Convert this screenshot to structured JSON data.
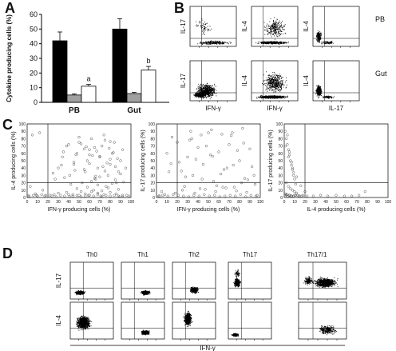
{
  "panel_labels": [
    "A",
    "B",
    "C",
    "D"
  ],
  "chart_data": [
    {
      "panel": "A",
      "type": "bar",
      "ylabel": "Cytokine producing cells (%)",
      "ylim": [
        0,
        60
      ],
      "yticks": [
        0,
        10,
        20,
        30,
        40,
        50,
        60
      ],
      "categories": [
        "PB",
        "Gut"
      ],
      "bar_colors": [
        "#000000",
        "#a0a0a0",
        "#ffffff"
      ],
      "series": [
        {
          "values": [
            42,
            50
          ],
          "errors": [
            6,
            7
          ]
        },
        {
          "values": [
            5,
            6
          ],
          "errors": [
            0.8,
            0.8
          ]
        },
        {
          "values": [
            11,
            22
          ],
          "errors": [
            1.2,
            2.5
          ]
        }
      ],
      "annotations": [
        {
          "group": 0,
          "series": 2,
          "text": "a"
        },
        {
          "group": 1,
          "series": 2,
          "text": "b"
        }
      ]
    },
    {
      "panel": "B",
      "type": "scatter",
      "row_labels": [
        "PB",
        "Gut"
      ],
      "plots": [
        {
          "row": 0,
          "col": 0,
          "ylabel": "IL-17",
          "xlabel": "",
          "pattern": "bottom-band",
          "density": "low"
        },
        {
          "row": 0,
          "col": 1,
          "ylabel": "IL-4",
          "xlabel": "",
          "pattern": "bottom-band-with-tail",
          "density": "medium"
        },
        {
          "row": 0,
          "col": 2,
          "ylabel": "IL-4",
          "xlabel": "",
          "pattern": "left-column",
          "density": "low"
        },
        {
          "row": 1,
          "col": 0,
          "ylabel": "IL-17",
          "xlabel": "IFN-γ",
          "pattern": "dense-block",
          "density": "high"
        },
        {
          "row": 1,
          "col": 1,
          "ylabel": "IL-4",
          "xlabel": "IFN-γ",
          "pattern": "bottom-band-with-tail",
          "density": "high"
        },
        {
          "row": 1,
          "col": 2,
          "ylabel": "IL-4",
          "xlabel": "IL-17",
          "pattern": "left-column",
          "density": "medium"
        }
      ]
    },
    {
      "panel": "C",
      "type": "scatter",
      "plots": [
        {
          "xlabel": "IFN-γ producing cells (%)",
          "ylabel": "IL-4 producing cells (%)",
          "xlim": [
            0,
            100
          ],
          "ylim": [
            0,
            100
          ],
          "xticks": [
            0,
            10,
            20,
            30,
            40,
            50,
            60,
            70,
            80,
            90,
            100
          ],
          "yticks": [
            0,
            10,
            20,
            30,
            40,
            50,
            60,
            70,
            80,
            90,
            100
          ],
          "threshold_x": 20,
          "threshold_y": 20,
          "x": [
            5,
            12,
            3,
            8,
            15,
            22,
            27,
            30,
            34,
            38,
            41,
            45,
            48,
            50,
            53,
            56,
            58,
            60,
            62,
            64,
            66,
            68,
            70,
            72,
            74,
            76,
            78,
            80,
            82,
            84,
            86,
            88,
            90,
            92,
            95,
            35,
            40,
            45,
            55,
            60,
            65,
            70,
            75,
            80,
            85,
            90,
            50,
            55,
            60,
            65,
            70,
            75,
            80,
            85,
            42,
            48,
            52,
            58,
            62,
            68,
            72,
            78,
            82,
            88,
            30,
            38,
            44,
            50,
            56,
            62,
            68,
            74,
            80,
            86,
            92,
            25,
            33,
            47,
            57,
            67,
            77,
            87,
            36,
            46,
            63,
            73,
            83,
            93,
            52,
            66,
            79,
            2,
            6,
            10,
            14,
            18,
            24,
            28,
            32,
            36,
            40,
            44,
            48,
            52,
            56,
            60,
            64,
            68,
            72,
            76,
            80,
            84,
            88,
            92,
            96,
            98,
            1,
            9,
            17,
            26,
            41,
            59,
            71,
            89
          ],
          "y": [
            85,
            88,
            15,
            5,
            10,
            3,
            25,
            40,
            55,
            70,
            30,
            45,
            60,
            75,
            20,
            35,
            50,
            65,
            80,
            10,
            25,
            40,
            55,
            70,
            85,
            15,
            30,
            45,
            60,
            75,
            20,
            35,
            50,
            65,
            40,
            62,
            72,
            48,
            38,
            58,
            68,
            28,
            78,
            52,
            42,
            32,
            82,
            66,
            46,
            26,
            56,
            36,
            76,
            24,
            18,
            12,
            8,
            14,
            22,
            17,
            9,
            13,
            19,
            11,
            6,
            7,
            4,
            3,
            5,
            8,
            6,
            4,
            7,
            5,
            3,
            33,
            44,
            58,
            69,
            63,
            47,
            53,
            27,
            37,
            57,
            42,
            61,
            21,
            73,
            29,
            67,
            2,
            3,
            2,
            4,
            3,
            2,
            1,
            3,
            2,
            4,
            2,
            3,
            1,
            2,
            3,
            2,
            4,
            1,
            3,
            2,
            3,
            2,
            1,
            3,
            2,
            2,
            3,
            2,
            4,
            1,
            3,
            2,
            1
          ]
        },
        {
          "xlabel": "IFN-γ producing cells (%)",
          "ylabel": "IL-17 producing cells (%)",
          "xlim": [
            0,
            100
          ],
          "ylim": [
            0,
            100
          ],
          "xticks": [
            0,
            10,
            20,
            30,
            40,
            50,
            60,
            70,
            80,
            90,
            100
          ],
          "yticks": [
            0,
            10,
            20,
            30,
            40,
            50,
            60,
            70,
            80,
            90,
            100
          ],
          "threshold_x": 20,
          "threshold_y": 20,
          "x": [
            5,
            10,
            15,
            20,
            25,
            30,
            35,
            40,
            45,
            50,
            55,
            60,
            65,
            70,
            75,
            80,
            85,
            90,
            95,
            12,
            22,
            32,
            42,
            52,
            62,
            72,
            82,
            92,
            18,
            28,
            38,
            48,
            58,
            68,
            78,
            88,
            8,
            14,
            24,
            34,
            44,
            54,
            64,
            74,
            84,
            94,
            3,
            27,
            37,
            47,
            57,
            67,
            77,
            87,
            97,
            2,
            6,
            11,
            16,
            21,
            26,
            31,
            36,
            41,
            46,
            51,
            56,
            61,
            66,
            71,
            76,
            81,
            86,
            91,
            96,
            33,
            43,
            53,
            63,
            73,
            83
          ],
          "y": [
            8,
            60,
            82,
            75,
            10,
            55,
            30,
            68,
            45,
            88,
            22,
            62,
            38,
            72,
            14,
            50,
            26,
            66,
            18,
            35,
            48,
            78,
            12,
            58,
            32,
            84,
            20,
            42,
            6,
            28,
            52,
            70,
            16,
            40,
            64,
            24,
            4,
            46,
            36,
            80,
            25,
            56,
            14,
            44,
            74,
            30,
            2,
            15,
            6,
            11,
            8,
            13,
            9,
            7,
            3,
            2,
            3,
            2,
            4,
            3,
            2,
            1,
            3,
            2,
            4,
            2,
            3,
            1,
            2,
            3,
            2,
            4,
            1,
            3,
            2,
            90,
            85,
            92,
            86,
            88,
            94
          ]
        },
        {
          "xlabel": "IL-4 producing cells (%)",
          "ylabel": "IL-17 producing cells (%)",
          "xlim": [
            0,
            100
          ],
          "ylim": [
            0,
            100
          ],
          "xticks": [
            0,
            10,
            20,
            30,
            40,
            50,
            60,
            70,
            80,
            90,
            100
          ],
          "yticks": [
            0,
            10,
            20,
            30,
            40,
            50,
            60,
            70,
            80,
            90,
            100
          ],
          "threshold_x": 20,
          "threshold_y": 20,
          "x": [
            1,
            2,
            3,
            4,
            5,
            6,
            7,
            8,
            9,
            10,
            2,
            4,
            6,
            8,
            10,
            12,
            3,
            5,
            7,
            9,
            11,
            1,
            3,
            5,
            7,
            15,
            2,
            6,
            10,
            14,
            18,
            22,
            28,
            35,
            42,
            50,
            58,
            65,
            72,
            78,
            1,
            4,
            8,
            12,
            16,
            20,
            2,
            5,
            9,
            13,
            17,
            3,
            7,
            11
          ],
          "y": [
            90,
            80,
            72,
            65,
            58,
            50,
            44,
            38,
            30,
            25,
            20,
            15,
            12,
            10,
            8,
            6,
            85,
            62,
            48,
            34,
            18,
            5,
            4,
            3,
            2,
            2,
            3,
            2,
            3,
            2,
            3,
            2,
            2,
            3,
            2,
            3,
            2,
            2,
            3,
            8,
            70,
            55,
            40,
            28,
            16,
            8,
            4,
            3,
            2,
            3,
            2,
            1,
            2,
            3
          ]
        }
      ]
    },
    {
      "panel": "D",
      "type": "scatter",
      "columns": [
        "Th0",
        "Th1",
        "Th2",
        "Th17",
        "Th17/1"
      ],
      "row_labels": [
        "IL-17",
        "IL-4"
      ],
      "xlabel": "IFN-γ",
      "plots": [
        {
          "row": 0,
          "col": 0,
          "pattern": "dll-blob"
        },
        {
          "row": 0,
          "col": 1,
          "pattern": "dlr-blob"
        },
        {
          "row": 0,
          "col": 2,
          "pattern": "dlr-blob-up"
        },
        {
          "row": 0,
          "col": 3,
          "pattern": "ul-blob"
        },
        {
          "row": 0,
          "col": 4,
          "pattern": "ur-blob-large"
        },
        {
          "row": 1,
          "col": 0,
          "pattern": "large-dll-blob"
        },
        {
          "row": 1,
          "col": 1,
          "pattern": "dlr-blob"
        },
        {
          "row": 1,
          "col": 2,
          "pattern": "ul-diagonal"
        },
        {
          "row": 1,
          "col": 3,
          "pattern": "dll-small"
        },
        {
          "row": 1,
          "col": 4,
          "pattern": "dlr-spread"
        }
      ]
    }
  ]
}
